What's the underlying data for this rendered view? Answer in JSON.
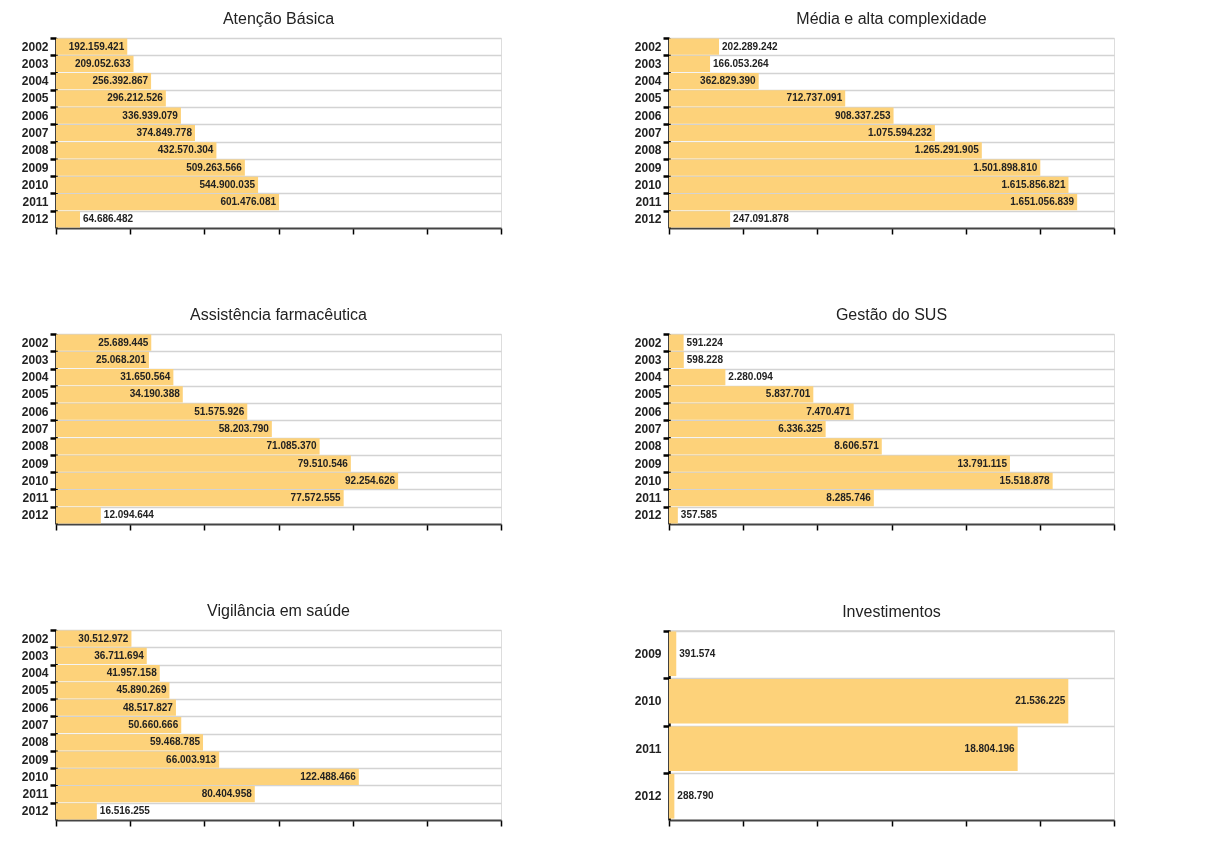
{
  "chart_data": [
    {
      "type": "bar",
      "orientation": "horizontal",
      "title": "Atenção Básica",
      "categories": [
        "2002",
        "2003",
        "2004",
        "2005",
        "2006",
        "2007",
        "2008",
        "2009",
        "2010",
        "2011",
        "2012"
      ],
      "values": [
        192159421,
        209052633,
        256392867,
        296212526,
        336939079,
        374849778,
        432570304,
        509263566,
        544900035,
        601476081,
        64686482
      ],
      "value_labels": [
        "192.159.421",
        "209.052.633",
        "256.392.867",
        "296.212.526",
        "336.939.079",
        "374.849.778",
        "432.570.304",
        "509.263.566",
        "544.900.035",
        "601.476.081",
        "64.686.482"
      ],
      "color": "#fdd27a",
      "xlim": [
        0,
        1200000000
      ],
      "xticks": [
        {
          "value": 0,
          "label": null
        },
        {
          "value": 200000000,
          "label": null
        },
        {
          "value": 400000000,
          "label": null
        },
        {
          "value": 600000000,
          "label": null
        },
        {
          "value": 800000000,
          "label": null
        },
        {
          "value": 1000000000,
          "label": null
        },
        {
          "value": 1200000000,
          "label": null
        }
      ],
      "grid": "y",
      "tick_labels": "y"
    },
    {
      "type": "bar",
      "orientation": "horizontal",
      "title": "Média e alta complexidade",
      "categories": [
        "2002",
        "2003",
        "2004",
        "2005",
        "2006",
        "2007",
        "2008",
        "2009",
        "2010",
        "2011",
        "2012"
      ],
      "values": [
        202289242,
        166053264,
        362829390,
        712737091,
        908337253,
        1075594232,
        1265291905,
        1501898810,
        1615856821,
        1651056839,
        247091878
      ],
      "value_labels": [
        "202.289.242",
        "166.053.264",
        "362.829.390",
        "712.737.091",
        "908.337.253",
        "1.075.594.232",
        "1.265.291.905",
        "1.501.898.810",
        "1.615.856.821",
        "1.651.056.839",
        "247.091.878"
      ],
      "color": "#fdd27a",
      "xlim": [
        0,
        1800000000
      ],
      "xticks": [
        {
          "value": 0,
          "label": null
        },
        {
          "value": 300000000,
          "label": null
        },
        {
          "value": 600000000,
          "label": null
        },
        {
          "value": 900000000,
          "label": null
        },
        {
          "value": 1200000000,
          "label": null
        },
        {
          "value": 1500000000,
          "label": null
        },
        {
          "value": 1800000000,
          "label": null
        }
      ],
      "grid": "y",
      "tick_labels": "y"
    },
    {
      "type": "bar",
      "orientation": "horizontal",
      "title": "Assistência farmacêutica",
      "categories": [
        "2002",
        "2003",
        "2004",
        "2005",
        "2006",
        "2007",
        "2008",
        "2009",
        "2010",
        "2011",
        "2012"
      ],
      "values": [
        25689445,
        25068201,
        31650564,
        34190388,
        51575926,
        58203790,
        71085370,
        79510546,
        92254626,
        77572555,
        12094644
      ],
      "value_labels": [
        "25.689.445",
        "25.068.201",
        "31.650.564",
        "34.190.388",
        "51.575.926",
        "58.203.790",
        "71.085.370",
        "79.510.546",
        "92.254.626",
        "77.572.555",
        "12.094.644"
      ],
      "color": "#fdd27a",
      "xlim": [
        0,
        120000000
      ],
      "xticks": [
        {
          "value": 0,
          "label": null
        },
        {
          "value": 20000000,
          "label": null
        },
        {
          "value": 40000000,
          "label": null
        },
        {
          "value": 60000000,
          "label": null
        },
        {
          "value": 80000000,
          "label": null
        },
        {
          "value": 100000000,
          "label": null
        },
        {
          "value": 120000000,
          "label": null
        }
      ],
      "grid": "y",
      "tick_labels": "y"
    },
    {
      "type": "bar",
      "orientation": "horizontal",
      "title": "Gestão do SUS",
      "categories": [
        "2002",
        "2003",
        "2004",
        "2005",
        "2006",
        "2007",
        "2008",
        "2009",
        "2010",
        "2011",
        "2012"
      ],
      "values": [
        591224,
        598228,
        2280094,
        5837701,
        7470471,
        6336325,
        8606571,
        13791115,
        15518878,
        8285746,
        357585
      ],
      "value_labels": [
        "591.224",
        "598.228",
        "2.280.094",
        "5.837.701",
        "7.470.471",
        "6.336.325",
        "8.606.571",
        "13.791.115",
        "15.518.878",
        "8.285.746",
        "357.585"
      ],
      "color": "#fdd27a",
      "xlim": [
        0,
        18000000
      ],
      "xticks": [
        {
          "value": 0,
          "label": null
        },
        {
          "value": 3000000,
          "label": null
        },
        {
          "value": 6000000,
          "label": null
        },
        {
          "value": 9000000,
          "label": null
        },
        {
          "value": 12000000,
          "label": null
        },
        {
          "value": 15000000,
          "label": null
        },
        {
          "value": 18000000,
          "label": null
        }
      ],
      "grid": "y",
      "tick_labels": "y"
    },
    {
      "type": "bar",
      "orientation": "horizontal",
      "title": "Vigilância em saúde",
      "categories": [
        "2002",
        "2003",
        "2004",
        "2005",
        "2006",
        "2007",
        "2008",
        "2009",
        "2010",
        "2011",
        "2012"
      ],
      "values": [
        30512972,
        36711694,
        41957158,
        45890269,
        48517827,
        50660666,
        59468785,
        66003913,
        122488466,
        80404958,
        16516255
      ],
      "value_labels": [
        "30.512.972",
        "36.711.694",
        "41.957.158",
        "45.890.269",
        "48.517.827",
        "50.660.666",
        "59.468.785",
        "66.003.913",
        "122.488.466",
        "80.404.958",
        "16.516.255"
      ],
      "color": "#fdd27a",
      "xlim": [
        0,
        180000000
      ],
      "xticks": [
        {
          "value": 0,
          "label": null
        },
        {
          "value": 30000000,
          "label": null
        },
        {
          "value": 60000000,
          "label": null
        },
        {
          "value": 90000000,
          "label": null
        },
        {
          "value": 120000000,
          "label": null
        },
        {
          "value": 150000000,
          "label": null
        },
        {
          "value": 180000000,
          "label": null
        }
      ],
      "grid": "y",
      "tick_labels": "y"
    },
    {
      "type": "bar",
      "orientation": "horizontal",
      "title": "Investimentos",
      "categories": [
        "2009",
        "2010",
        "2011",
        "2012"
      ],
      "values": [
        391574,
        21536225,
        18804196,
        288790
      ],
      "value_labels": [
        "391.574",
        "21.536.225",
        "18.804.196",
        "288.790"
      ],
      "color": "#fdd27a",
      "xlim": [
        0,
        24000000
      ],
      "xticks": [
        {
          "value": 0,
          "label": null
        },
        {
          "value": 4000000,
          "label": null
        },
        {
          "value": 8000000,
          "label": null
        },
        {
          "value": 12000000,
          "label": null
        },
        {
          "value": 16000000,
          "label": null
        },
        {
          "value": 20000000,
          "label": null
        },
        {
          "value": 24000000,
          "label": null
        }
      ],
      "grid": "y",
      "tick_labels": "y"
    }
  ]
}
